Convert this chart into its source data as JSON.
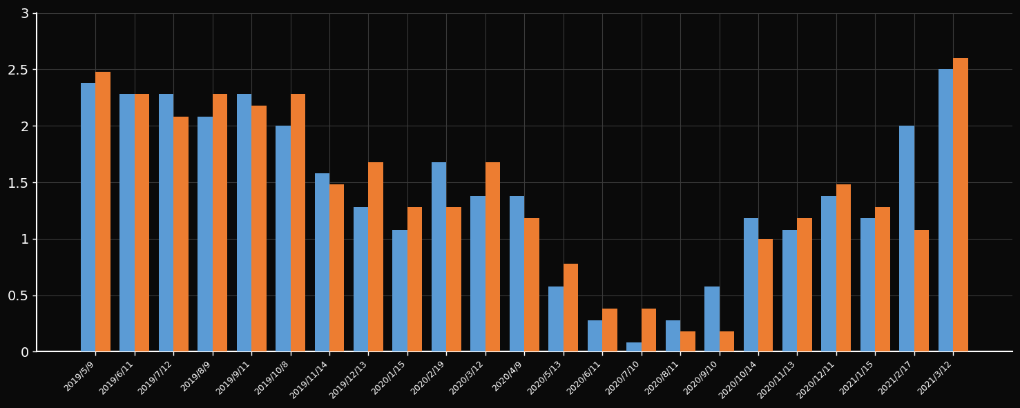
{
  "categories": [
    "2019/5/9",
    "2019/6/11",
    "2019/7/12",
    "2019/8/9",
    "2019/9/11",
    "2019/10/8",
    "2019/11/14",
    "2019/12/13",
    "2020/1/15",
    "2020/2/19",
    "2020/3/12",
    "2020/4/9",
    "2020/5/13",
    "2020/6/11",
    "2020/7/10",
    "2020/8/11",
    "2020/9/10",
    "2020/10/14",
    "2020/11/13",
    "2020/12/11",
    "2021/1/15",
    "2021/2/17",
    "2021/3/12"
  ],
  "series1": [
    2.38,
    2.28,
    2.28,
    2.08,
    2.28,
    2.0,
    1.58,
    1.28,
    1.08,
    1.68,
    1.38,
    1.38,
    0.58,
    0.28,
    0.08,
    0.28,
    0.58,
    1.18,
    1.08,
    1.38,
    1.18,
    2.0,
    2.5
  ],
  "series2": [
    2.48,
    2.28,
    2.08,
    2.28,
    2.18,
    2.28,
    1.48,
    1.68,
    1.28,
    1.28,
    1.68,
    1.18,
    0.78,
    0.38,
    0.38,
    0.18,
    0.18,
    1.0,
    1.18,
    1.48,
    1.28,
    1.08,
    2.6
  ],
  "color1": "#5b9bd5",
  "color2": "#ed7d31",
  "background_color": "#0a0a0a",
  "plot_bg_color": "#0a0a0a",
  "grid_color": "#3a3a3a",
  "text_color": "#ffffff",
  "spine_color": "#ffffff",
  "ytick_labels": [
    "0",
    "0.5",
    "1",
    "1.5",
    "2",
    "2.5",
    "3"
  ],
  "ytick_values": [
    0,
    0.5,
    1.0,
    1.5,
    2.0,
    2.5,
    3.0
  ],
  "ylim": [
    0,
    3.0
  ],
  "bar_width": 0.38,
  "ytick_fontsize": 14,
  "xtick_fontsize": 9
}
